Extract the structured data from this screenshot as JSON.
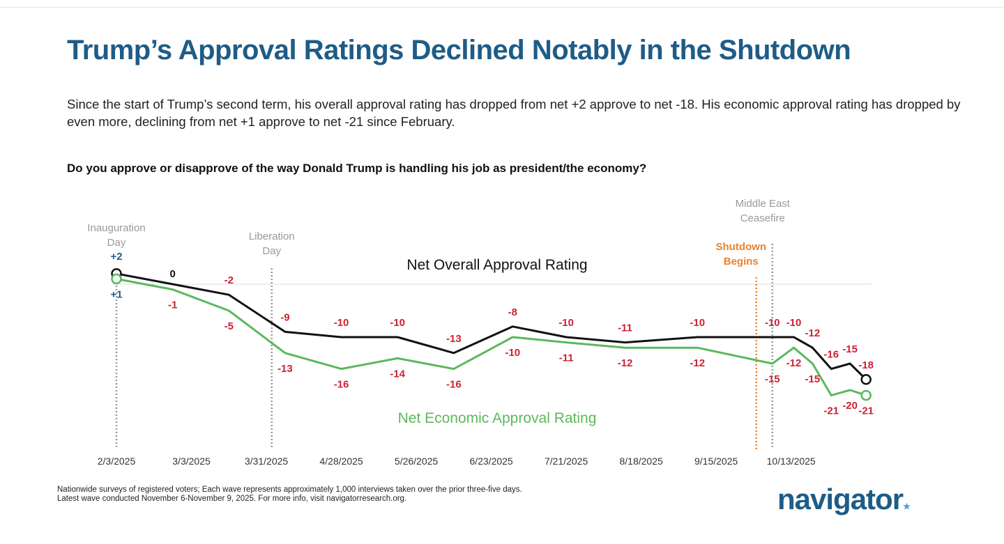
{
  "title": "Trump’s Approval Ratings Declined Notably in the Shutdown",
  "subtitle": "Since the start of Trump’s second term, his overall approval rating has dropped from net +2 approve to net -18. His economic approval rating has dropped by even more, declining from net +1 approve to net -21 since February.",
  "question": "Do you approve or disapprove of the way Donald Trump is handling his job as president/the economy?",
  "footnote": [
    "Nationwide surveys of registered voters; Each wave represents approximately 1,000 interviews taken over the prior three-five days.",
    "Latest wave conducted November 6-November 9, 2025. For more info, visit navigatorresearch.org."
  ],
  "logo": "navigator",
  "colors": {
    "title": "#1e5c86",
    "overall": "#111111",
    "economic": "#5cb85c",
    "label": "#cc2233",
    "shutdown": "#e8822e",
    "event": "#999999"
  },
  "chart_data": {
    "type": "line",
    "x_unit": "days since 2/3/2025",
    "x_tick_labels": [
      "2/3/2025",
      "3/3/2025",
      "3/31/2025",
      "4/28/2025",
      "5/26/2025",
      "6/23/2025",
      "7/21/2025",
      "8/18/2025",
      "9/15/2025",
      "10/13/2025"
    ],
    "x_ticks": [
      0,
      28,
      56,
      84,
      112,
      140,
      168,
      196,
      224,
      252
    ],
    "x": [
      0,
      21,
      42,
      63,
      84,
      105,
      126,
      148,
      168,
      190,
      217,
      245,
      253,
      260,
      267,
      274,
      280
    ],
    "ylim": [
      -25,
      5
    ],
    "series": [
      {
        "name": "Net Overall Approval Rating",
        "values": [
          2,
          0,
          -2,
          -9,
          -10,
          -10,
          -13,
          -8,
          -10,
          -11,
          -10,
          -10,
          -10,
          -12,
          -16,
          -15,
          -18
        ],
        "labels": [
          "+2",
          "0",
          "-2",
          "-9",
          "-10",
          "-10",
          "-13",
          "-8",
          "-10",
          "-11",
          "-10",
          "-10",
          "-10",
          "-12",
          "-16",
          "-15",
          "-18"
        ]
      },
      {
        "name": "Net Economic Approval Rating",
        "values": [
          1,
          -1,
          -5,
          -13,
          -16,
          -14,
          -16,
          -10,
          -11,
          -12,
          -12,
          -15,
          -12,
          -15,
          -21,
          -20,
          -21
        ],
        "labels": [
          "+1",
          "-1",
          "-5",
          "-13",
          "-16",
          "-14",
          "-16",
          "-10",
          "-11",
          "-12",
          "-12",
          "-15",
          "-12",
          "-15",
          "-21",
          "-20",
          "-21"
        ]
      }
    ],
    "events": [
      {
        "label": [
          "Inauguration",
          "Day"
        ],
        "x": 0
      },
      {
        "label": [
          "Liberation",
          "Day"
        ],
        "x": 58
      },
      {
        "label": [
          "Shutdown",
          "Begins"
        ],
        "x": 239
      },
      {
        "label": [
          "Middle East",
          "Ceasefire"
        ],
        "x": 245
      }
    ]
  }
}
